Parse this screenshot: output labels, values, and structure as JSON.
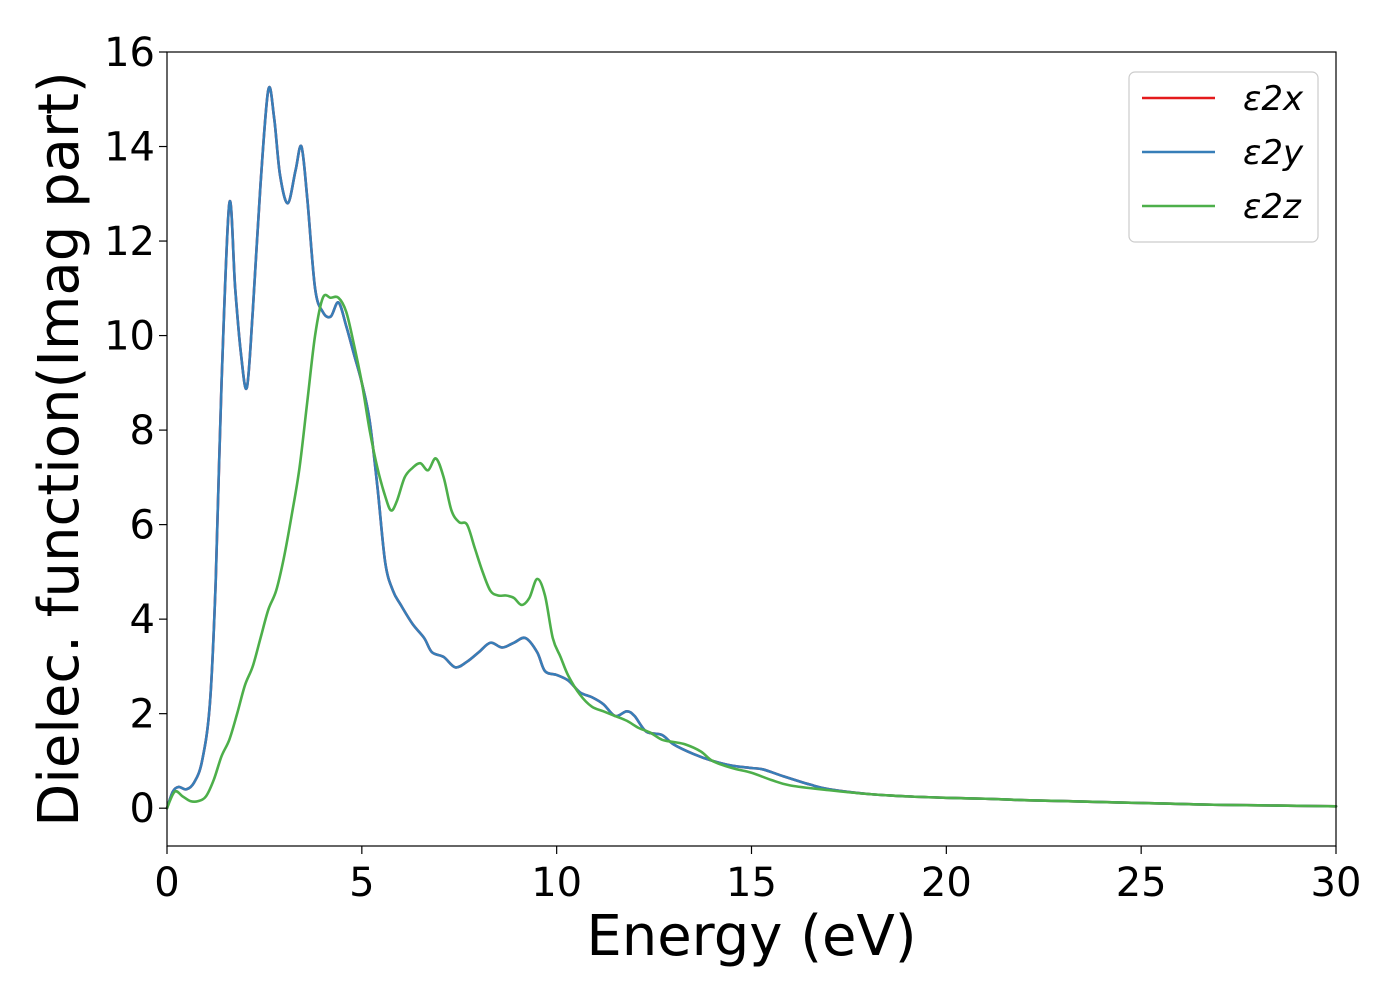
{
  "chart_data": {
    "type": "line",
    "title": "",
    "xlabel": "Energy (eV)",
    "ylabel": "Dielec. function(Imag part)",
    "xlim": [
      0,
      30
    ],
    "ylim": [
      -0.8,
      16
    ],
    "xticks": [
      0,
      5,
      10,
      15,
      20,
      25,
      30
    ],
    "yticks": [
      0,
      2,
      4,
      6,
      8,
      10,
      12,
      14,
      16
    ],
    "grid": false,
    "legend_position": "top-right",
    "series": [
      {
        "name": "ε2x",
        "color": "#e41a1c",
        "points": [
          [
            0,
            0
          ],
          [
            0.15,
            0.35
          ],
          [
            0.3,
            0.45
          ],
          [
            0.5,
            0.4
          ],
          [
            0.7,
            0.55
          ],
          [
            0.9,
            1.0
          ],
          [
            1.1,
            2.2
          ],
          [
            1.25,
            4.8
          ],
          [
            1.4,
            9.0
          ],
          [
            1.6,
            12.8
          ],
          [
            1.75,
            11.0
          ],
          [
            1.9,
            9.6
          ],
          [
            2.05,
            8.9
          ],
          [
            2.2,
            10.5
          ],
          [
            2.4,
            13.2
          ],
          [
            2.6,
            15.2
          ],
          [
            2.75,
            14.6
          ],
          [
            2.9,
            13.4
          ],
          [
            3.1,
            12.8
          ],
          [
            3.3,
            13.5
          ],
          [
            3.45,
            14.0
          ],
          [
            3.6,
            12.9
          ],
          [
            3.8,
            11.0
          ],
          [
            4.0,
            10.5
          ],
          [
            4.2,
            10.4
          ],
          [
            4.4,
            10.7
          ],
          [
            4.6,
            10.2
          ],
          [
            4.8,
            9.6
          ],
          [
            5.0,
            9.0
          ],
          [
            5.2,
            8.2
          ],
          [
            5.4,
            6.8
          ],
          [
            5.6,
            5.2
          ],
          [
            5.8,
            4.6
          ],
          [
            6.0,
            4.3
          ],
          [
            6.3,
            3.9
          ],
          [
            6.6,
            3.6
          ],
          [
            6.8,
            3.3
          ],
          [
            7.1,
            3.2
          ],
          [
            7.4,
            2.98
          ],
          [
            7.7,
            3.1
          ],
          [
            8.0,
            3.3
          ],
          [
            8.3,
            3.5
          ],
          [
            8.6,
            3.4
          ],
          [
            8.9,
            3.5
          ],
          [
            9.2,
            3.6
          ],
          [
            9.5,
            3.3
          ],
          [
            9.7,
            2.9
          ],
          [
            10.0,
            2.82
          ],
          [
            10.3,
            2.7
          ],
          [
            10.6,
            2.45
          ],
          [
            10.9,
            2.35
          ],
          [
            11.2,
            2.2
          ],
          [
            11.5,
            1.95
          ],
          [
            11.8,
            2.05
          ],
          [
            12.0,
            1.95
          ],
          [
            12.3,
            1.62
          ],
          [
            12.7,
            1.55
          ],
          [
            13.0,
            1.35
          ],
          [
            13.5,
            1.15
          ],
          [
            14.0,
            1.0
          ],
          [
            14.5,
            0.9
          ],
          [
            15.0,
            0.85
          ],
          [
            15.3,
            0.82
          ],
          [
            15.8,
            0.68
          ],
          [
            16.5,
            0.5
          ],
          [
            17.0,
            0.4
          ],
          [
            18.0,
            0.3
          ],
          [
            19.0,
            0.25
          ],
          [
            20.0,
            0.22
          ],
          [
            21.0,
            0.2
          ],
          [
            22.0,
            0.17
          ],
          [
            23.0,
            0.15
          ],
          [
            24.0,
            0.13
          ],
          [
            25.0,
            0.11
          ],
          [
            26.0,
            0.09
          ],
          [
            27.0,
            0.07
          ],
          [
            28.0,
            0.06
          ],
          [
            29.0,
            0.05
          ],
          [
            30.0,
            0.04
          ]
        ]
      },
      {
        "name": "ε2y",
        "color": "#377eb8",
        "points": [
          [
            0,
            0
          ],
          [
            0.15,
            0.35
          ],
          [
            0.3,
            0.45
          ],
          [
            0.5,
            0.4
          ],
          [
            0.7,
            0.55
          ],
          [
            0.9,
            1.0
          ],
          [
            1.1,
            2.2
          ],
          [
            1.25,
            4.8
          ],
          [
            1.4,
            9.0
          ],
          [
            1.6,
            12.8
          ],
          [
            1.75,
            11.0
          ],
          [
            1.9,
            9.6
          ],
          [
            2.05,
            8.9
          ],
          [
            2.2,
            10.5
          ],
          [
            2.4,
            13.2
          ],
          [
            2.6,
            15.2
          ],
          [
            2.75,
            14.6
          ],
          [
            2.9,
            13.4
          ],
          [
            3.1,
            12.8
          ],
          [
            3.3,
            13.5
          ],
          [
            3.45,
            14.0
          ],
          [
            3.6,
            12.9
          ],
          [
            3.8,
            11.0
          ],
          [
            4.0,
            10.5
          ],
          [
            4.2,
            10.4
          ],
          [
            4.4,
            10.7
          ],
          [
            4.6,
            10.2
          ],
          [
            4.8,
            9.6
          ],
          [
            5.0,
            9.0
          ],
          [
            5.2,
            8.2
          ],
          [
            5.4,
            6.8
          ],
          [
            5.6,
            5.2
          ],
          [
            5.8,
            4.6
          ],
          [
            6.0,
            4.3
          ],
          [
            6.3,
            3.9
          ],
          [
            6.6,
            3.6
          ],
          [
            6.8,
            3.3
          ],
          [
            7.1,
            3.2
          ],
          [
            7.4,
            2.98
          ],
          [
            7.7,
            3.1
          ],
          [
            8.0,
            3.3
          ],
          [
            8.3,
            3.5
          ],
          [
            8.6,
            3.4
          ],
          [
            8.9,
            3.5
          ],
          [
            9.2,
            3.6
          ],
          [
            9.5,
            3.3
          ],
          [
            9.7,
            2.9
          ],
          [
            10.0,
            2.82
          ],
          [
            10.3,
            2.7
          ],
          [
            10.6,
            2.45
          ],
          [
            10.9,
            2.35
          ],
          [
            11.2,
            2.2
          ],
          [
            11.5,
            1.95
          ],
          [
            11.8,
            2.05
          ],
          [
            12.0,
            1.95
          ],
          [
            12.3,
            1.62
          ],
          [
            12.7,
            1.55
          ],
          [
            13.0,
            1.35
          ],
          [
            13.5,
            1.15
          ],
          [
            14.0,
            1.0
          ],
          [
            14.5,
            0.9
          ],
          [
            15.0,
            0.85
          ],
          [
            15.3,
            0.82
          ],
          [
            15.8,
            0.68
          ],
          [
            16.5,
            0.5
          ],
          [
            17.0,
            0.4
          ],
          [
            18.0,
            0.3
          ],
          [
            19.0,
            0.25
          ],
          [
            20.0,
            0.22
          ],
          [
            21.0,
            0.2
          ],
          [
            22.0,
            0.17
          ],
          [
            23.0,
            0.15
          ],
          [
            24.0,
            0.13
          ],
          [
            25.0,
            0.11
          ],
          [
            26.0,
            0.09
          ],
          [
            27.0,
            0.07
          ],
          [
            28.0,
            0.06
          ],
          [
            29.0,
            0.05
          ],
          [
            30.0,
            0.04
          ]
        ]
      },
      {
        "name": "ε2z",
        "color": "#4daf4a",
        "points": [
          [
            0,
            0
          ],
          [
            0.2,
            0.35
          ],
          [
            0.4,
            0.25
          ],
          [
            0.6,
            0.15
          ],
          [
            0.8,
            0.15
          ],
          [
            1.0,
            0.25
          ],
          [
            1.2,
            0.6
          ],
          [
            1.4,
            1.1
          ],
          [
            1.6,
            1.45
          ],
          [
            1.8,
            2.0
          ],
          [
            2.0,
            2.6
          ],
          [
            2.2,
            3.0
          ],
          [
            2.4,
            3.6
          ],
          [
            2.6,
            4.2
          ],
          [
            2.8,
            4.6
          ],
          [
            3.0,
            5.3
          ],
          [
            3.2,
            6.2
          ],
          [
            3.4,
            7.2
          ],
          [
            3.6,
            8.6
          ],
          [
            3.8,
            10.0
          ],
          [
            4.0,
            10.8
          ],
          [
            4.2,
            10.8
          ],
          [
            4.4,
            10.8
          ],
          [
            4.6,
            10.5
          ],
          [
            4.8,
            9.8
          ],
          [
            5.0,
            9.0
          ],
          [
            5.2,
            8.0
          ],
          [
            5.4,
            7.2
          ],
          [
            5.6,
            6.6
          ],
          [
            5.75,
            6.3
          ],
          [
            5.9,
            6.5
          ],
          [
            6.1,
            7.0
          ],
          [
            6.3,
            7.2
          ],
          [
            6.5,
            7.3
          ],
          [
            6.7,
            7.15
          ],
          [
            6.9,
            7.4
          ],
          [
            7.1,
            7.0
          ],
          [
            7.3,
            6.3
          ],
          [
            7.5,
            6.05
          ],
          [
            7.7,
            6.0
          ],
          [
            7.9,
            5.5
          ],
          [
            8.1,
            5.0
          ],
          [
            8.3,
            4.6
          ],
          [
            8.5,
            4.5
          ],
          [
            8.7,
            4.5
          ],
          [
            8.9,
            4.45
          ],
          [
            9.1,
            4.3
          ],
          [
            9.3,
            4.45
          ],
          [
            9.5,
            4.85
          ],
          [
            9.7,
            4.5
          ],
          [
            9.9,
            3.6
          ],
          [
            10.1,
            3.2
          ],
          [
            10.3,
            2.8
          ],
          [
            10.6,
            2.4
          ],
          [
            10.9,
            2.15
          ],
          [
            11.2,
            2.05
          ],
          [
            11.5,
            1.95
          ],
          [
            11.8,
            1.85
          ],
          [
            12.1,
            1.7
          ],
          [
            12.4,
            1.6
          ],
          [
            12.7,
            1.45
          ],
          [
            13.0,
            1.4
          ],
          [
            13.3,
            1.35
          ],
          [
            13.7,
            1.2
          ],
          [
            14.0,
            1.0
          ],
          [
            14.5,
            0.85
          ],
          [
            15.0,
            0.75
          ],
          [
            15.5,
            0.6
          ],
          [
            16.0,
            0.48
          ],
          [
            17.0,
            0.38
          ],
          [
            18.0,
            0.3
          ],
          [
            19.0,
            0.25
          ],
          [
            20.0,
            0.22
          ],
          [
            21.0,
            0.2
          ],
          [
            22.0,
            0.17
          ],
          [
            23.0,
            0.15
          ],
          [
            24.0,
            0.13
          ],
          [
            25.0,
            0.11
          ],
          [
            26.0,
            0.09
          ],
          [
            27.0,
            0.07
          ],
          [
            28.0,
            0.06
          ],
          [
            29.0,
            0.05
          ],
          [
            30.0,
            0.04
          ]
        ]
      }
    ]
  }
}
